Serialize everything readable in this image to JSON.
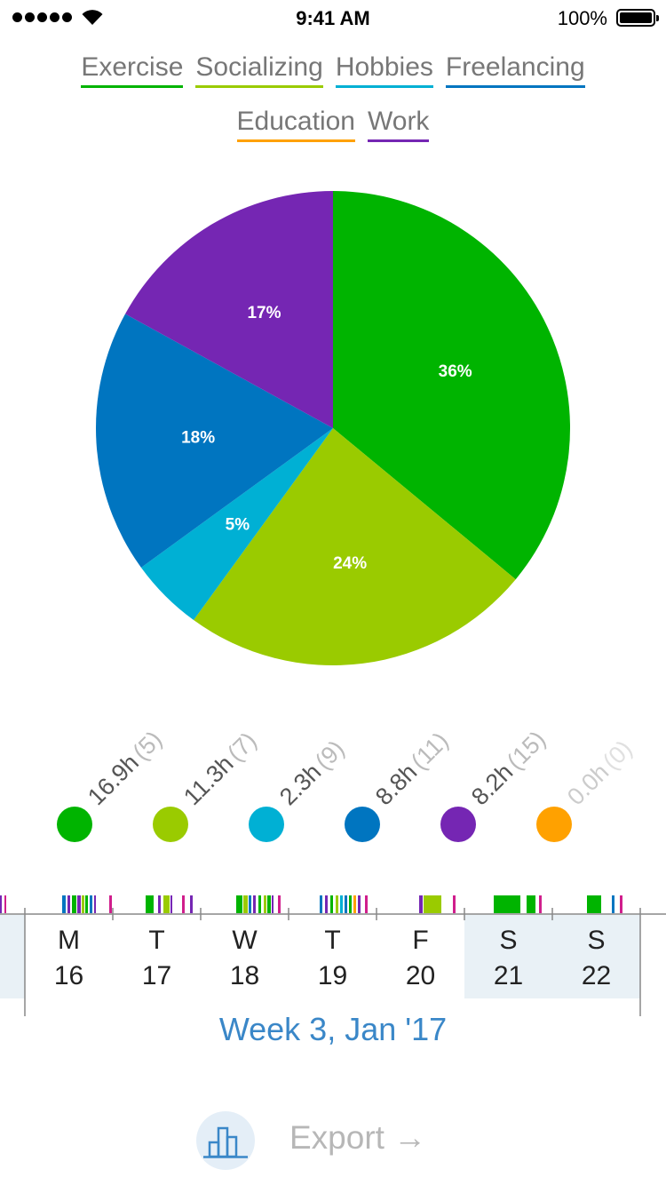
{
  "status_bar": {
    "time": "9:41 AM",
    "battery": "100%"
  },
  "legend": [
    {
      "label": "Exercise",
      "color": "#00b400"
    },
    {
      "label": "Socializing",
      "color": "#9acb00"
    },
    {
      "label": "Hobbies",
      "color": "#00b0d4"
    },
    {
      "label": "Freelancing",
      "color": "#0075c0"
    },
    {
      "label": "Education",
      "color": "#ffa100"
    },
    {
      "label": "Work",
      "color": "#7526b3"
    }
  ],
  "chart_data": {
    "type": "pie",
    "slices": [
      {
        "category": "Exercise",
        "value": 36,
        "label": "36%",
        "color": "#00b400"
      },
      {
        "category": "Socializing",
        "value": 24,
        "label": "24%",
        "color": "#9acb00"
      },
      {
        "category": "Hobbies",
        "value": 5,
        "label": "5%",
        "color": "#00b0d4"
      },
      {
        "category": "Freelancing",
        "value": 18,
        "label": "18%",
        "color": "#0075c0"
      },
      {
        "category": "Work",
        "value": 17,
        "label": "17%",
        "color": "#7526b3"
      }
    ]
  },
  "totals": [
    {
      "hours": "16.9h",
      "count": "(5)",
      "color": "#00b400"
    },
    {
      "hours": "11.3h",
      "count": "(7)",
      "color": "#9acb00"
    },
    {
      "hours": "2.3h",
      "count": "(9)",
      "color": "#00b0d4"
    },
    {
      "hours": "8.8h",
      "count": "(11)",
      "color": "#0075c0"
    },
    {
      "hours": "8.2h",
      "count": "(15)",
      "color": "#7526b3"
    },
    {
      "hours": "0.0h",
      "count": "(0)",
      "color": "#ffa100",
      "faded": true
    }
  ],
  "week": {
    "label": "Week 3, Jan '17",
    "days": [
      {
        "letter": "M",
        "date": "16",
        "weekend": false
      },
      {
        "letter": "T",
        "date": "17",
        "weekend": false
      },
      {
        "letter": "W",
        "date": "18",
        "weekend": false
      },
      {
        "letter": "T",
        "date": "19",
        "weekend": false
      },
      {
        "letter": "F",
        "date": "20",
        "weekend": false
      },
      {
        "letter": "S",
        "date": "21",
        "weekend": true
      },
      {
        "letter": "S",
        "date": "22",
        "weekend": true
      }
    ]
  },
  "bottom": {
    "export_label": "Export →",
    "stats_icon": "bar-chart-icon"
  }
}
